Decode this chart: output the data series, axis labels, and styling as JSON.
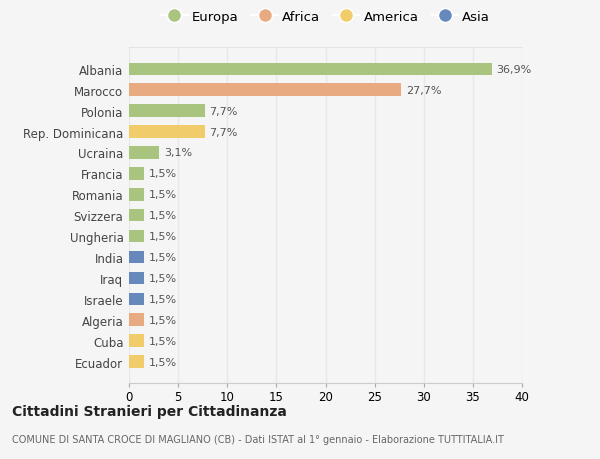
{
  "categories": [
    "Albania",
    "Marocco",
    "Polonia",
    "Rep. Dominicana",
    "Ucraina",
    "Francia",
    "Romania",
    "Svizzera",
    "Ungheria",
    "India",
    "Iraq",
    "Israele",
    "Algeria",
    "Cuba",
    "Ecuador"
  ],
  "values": [
    36.9,
    27.7,
    7.7,
    7.7,
    3.1,
    1.5,
    1.5,
    1.5,
    1.5,
    1.5,
    1.5,
    1.5,
    1.5,
    1.5,
    1.5
  ],
  "labels": [
    "36,9%",
    "27,7%",
    "7,7%",
    "7,7%",
    "3,1%",
    "1,5%",
    "1,5%",
    "1,5%",
    "1,5%",
    "1,5%",
    "1,5%",
    "1,5%",
    "1,5%",
    "1,5%",
    "1,5%"
  ],
  "continents": [
    "Europa",
    "Africa",
    "Europa",
    "America",
    "Europa",
    "Europa",
    "Europa",
    "Europa",
    "Europa",
    "Asia",
    "Asia",
    "Asia",
    "Africa",
    "America",
    "America"
  ],
  "colors": {
    "Europa": "#a8c47e",
    "Africa": "#e8aa80",
    "America": "#f0cc6a",
    "Asia": "#6688bb"
  },
  "legend_order": [
    "Europa",
    "Africa",
    "America",
    "Asia"
  ],
  "title": "Cittadini Stranieri per Cittadinanza",
  "subtitle": "COMUNE DI SANTA CROCE DI MAGLIANO (CB) - Dati ISTAT al 1° gennaio - Elaborazione TUTTITALIA.IT",
  "xlim": [
    0,
    40
  ],
  "xticks": [
    0,
    5,
    10,
    15,
    20,
    25,
    30,
    35,
    40
  ],
  "background_color": "#f5f5f5",
  "grid_color": "#e8e8e8",
  "bar_height": 0.6
}
